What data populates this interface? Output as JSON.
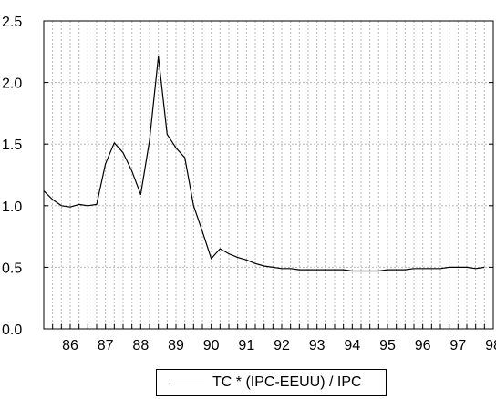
{
  "chart_data": {
    "type": "line",
    "title": "",
    "xlabel": "",
    "ylabel": "",
    "xlim": [
      1985.75,
      1998.5
    ],
    "ylim": [
      0.0,
      2.5
    ],
    "grid": true,
    "legend_position": "bottom-center",
    "x_tick_labels": [
      "86",
      "87",
      "88",
      "89",
      "90",
      "91",
      "92",
      "93",
      "94",
      "95",
      "96",
      "97",
      "98"
    ],
    "y_tick_labels": [
      "0.0",
      "0.5",
      "1.0",
      "1.5",
      "2.0",
      "2.5"
    ],
    "y_ticks": [
      0.0,
      0.5,
      1.0,
      1.5,
      2.0,
      2.5
    ],
    "series": [
      {
        "name": "TC * (IPC-EEUU) / IPC",
        "color": "#000000",
        "x": [
          1985.75,
          1986.0,
          1986.25,
          1986.5,
          1986.75,
          1987.0,
          1987.25,
          1987.5,
          1987.75,
          1988.0,
          1988.25,
          1988.5,
          1988.75,
          1989.0,
          1989.25,
          1989.5,
          1989.75,
          1990.0,
          1990.25,
          1990.5,
          1990.75,
          1991.0,
          1991.25,
          1991.5,
          1991.75,
          1992.0,
          1992.25,
          1992.5,
          1992.75,
          1993.0,
          1993.25,
          1993.5,
          1993.75,
          1994.0,
          1994.25,
          1994.5,
          1994.75,
          1995.0,
          1995.25,
          1995.5,
          1995.75,
          1996.0,
          1996.25,
          1996.5,
          1996.75,
          1997.0,
          1997.25,
          1997.5,
          1997.75,
          1998.0,
          1998.25
        ],
        "values": [
          1.12,
          1.05,
          1.0,
          0.99,
          1.01,
          1.0,
          1.01,
          1.34,
          1.51,
          1.43,
          1.28,
          1.09,
          1.53,
          2.21,
          1.58,
          1.47,
          1.39,
          1.0,
          0.79,
          0.57,
          0.65,
          0.61,
          0.58,
          0.56,
          0.53,
          0.51,
          0.5,
          0.49,
          0.49,
          0.48,
          0.48,
          0.48,
          0.48,
          0.48,
          0.48,
          0.47,
          0.47,
          0.47,
          0.47,
          0.48,
          0.48,
          0.48,
          0.49,
          0.49,
          0.49,
          0.49,
          0.5,
          0.5,
          0.5,
          0.49,
          0.5
        ]
      }
    ]
  }
}
